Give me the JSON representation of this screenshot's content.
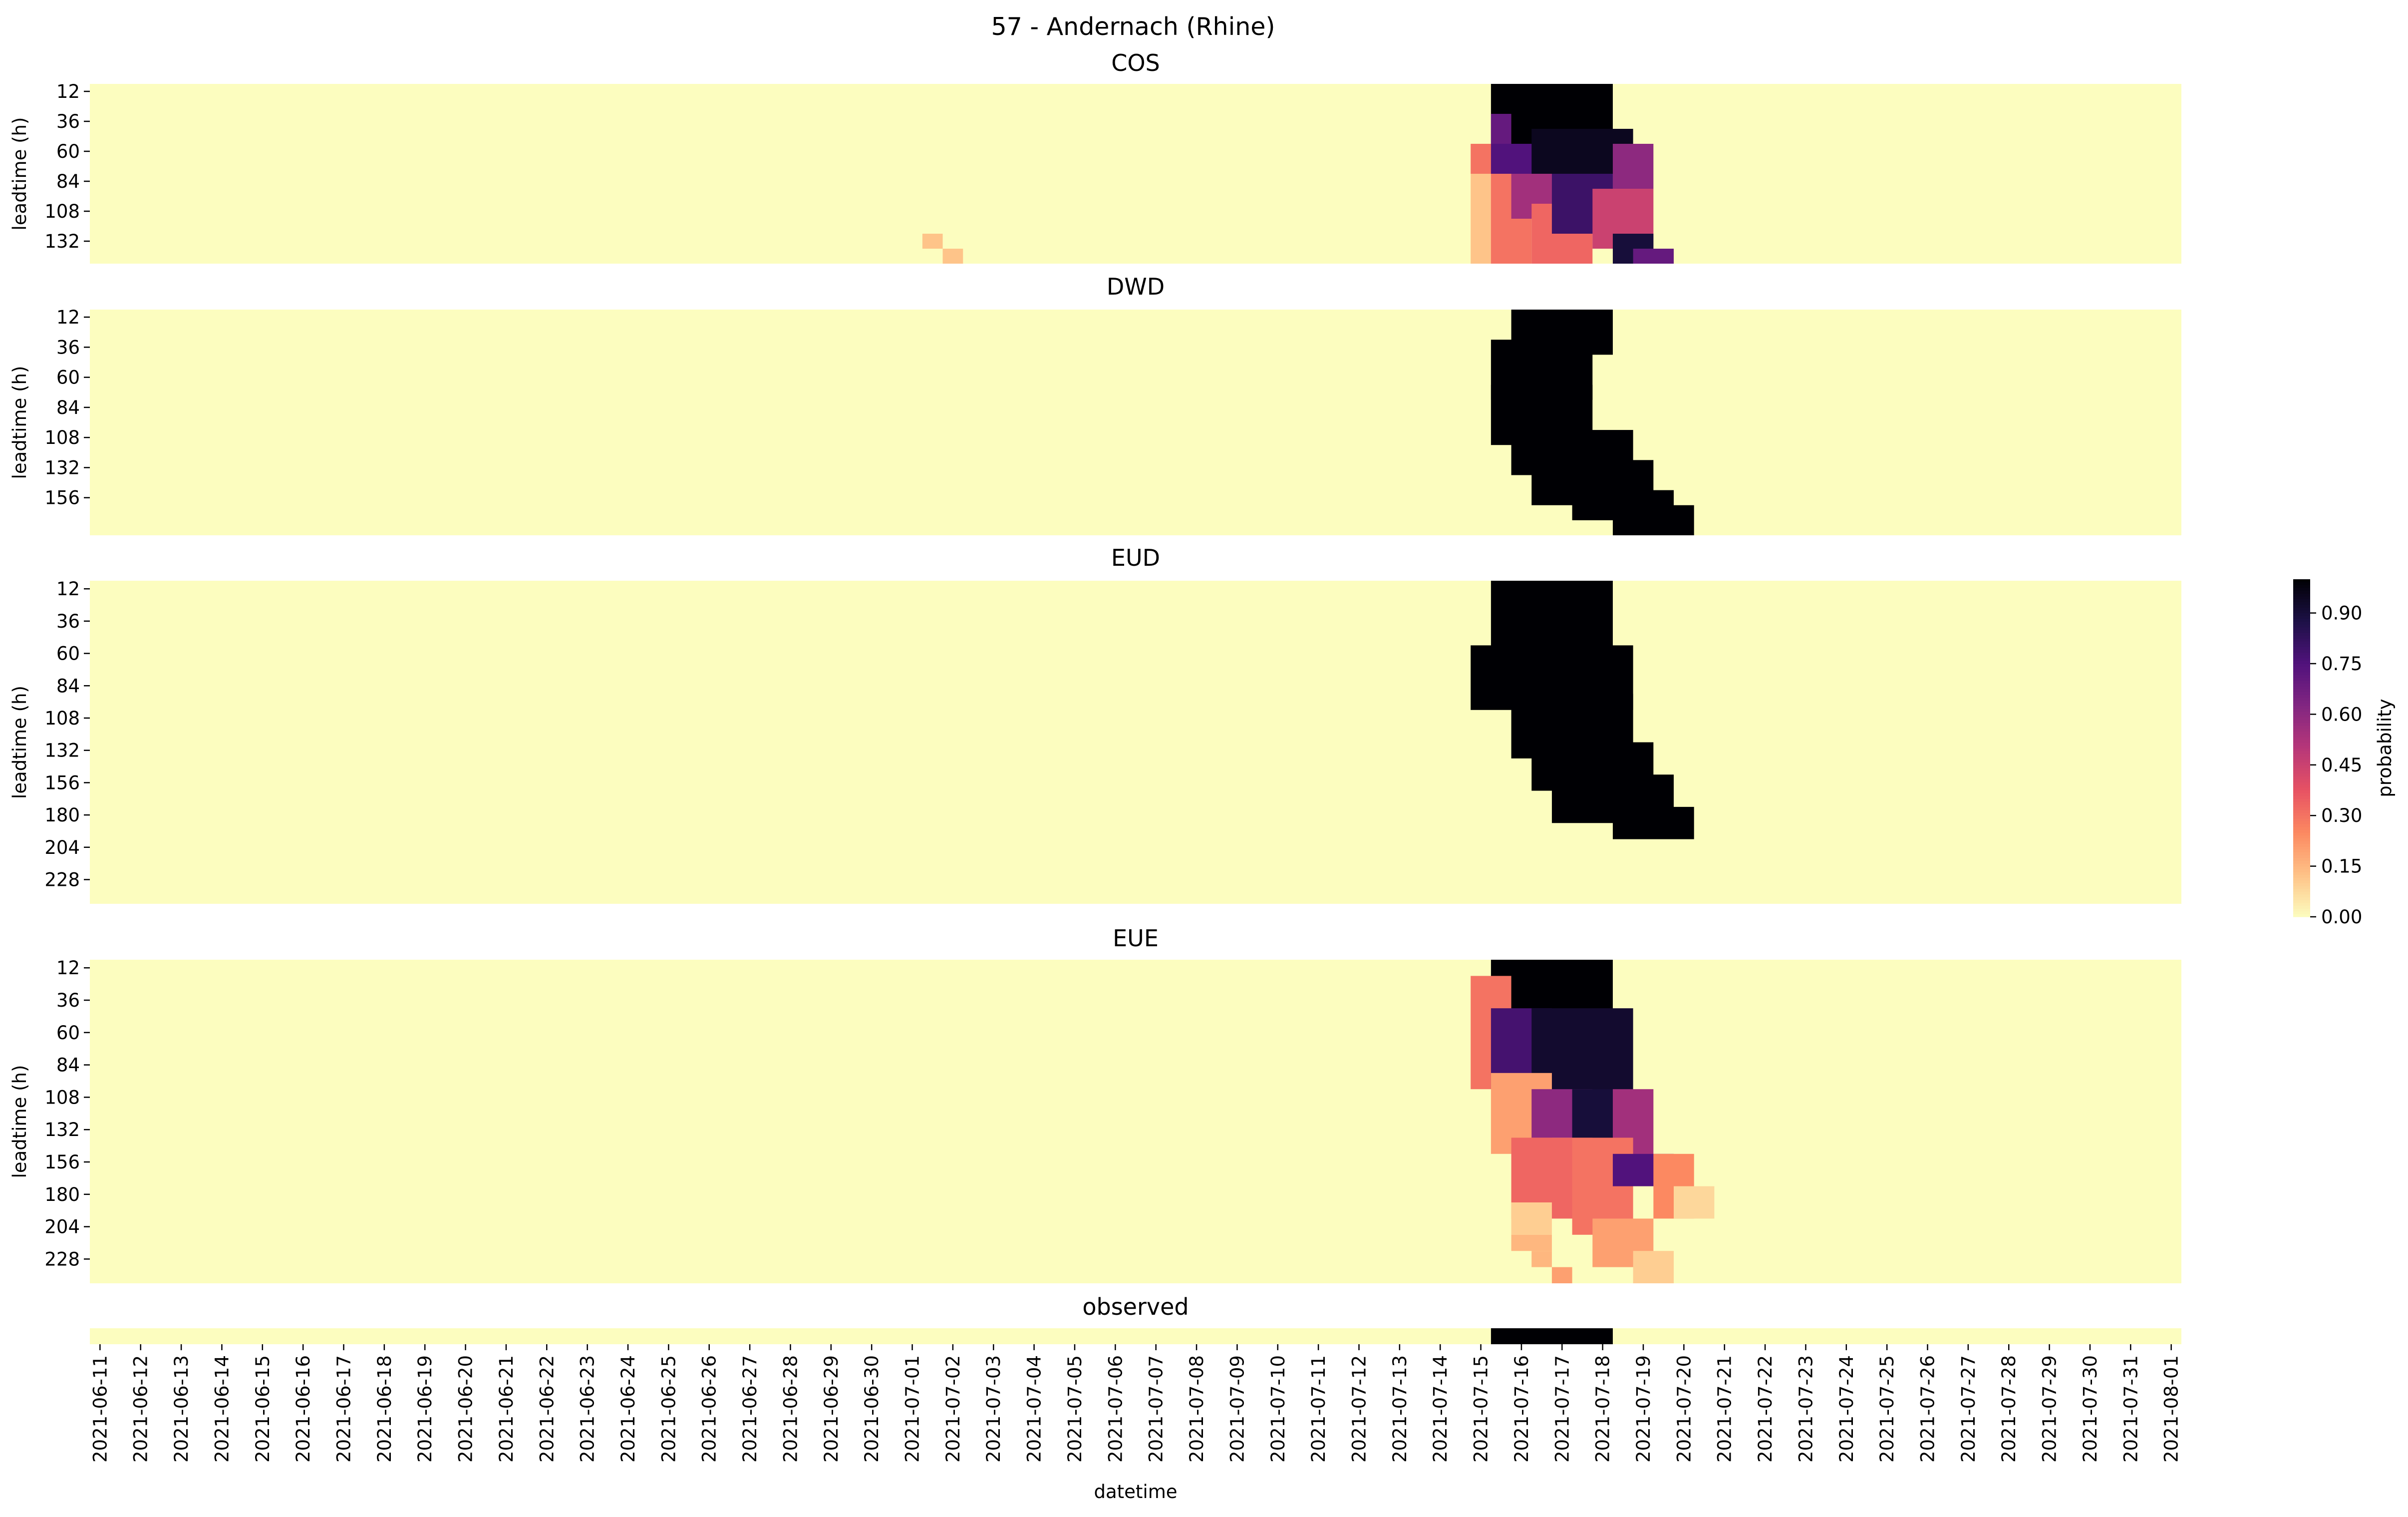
{
  "figure": {
    "title": "57 - Andernach (Rhine)"
  },
  "colors": {
    "low": "#fcfdbf",
    "high": "#000004",
    "stops": [
      "#fcfdbf",
      "#fec287",
      "#fc8961",
      "#e75263",
      "#b73779",
      "#822681",
      "#51127c",
      "#1d1147",
      "#000004"
    ]
  },
  "colorbar": {
    "label": "probability",
    "ticks": [
      "0.00",
      "0.15",
      "0.30",
      "0.45",
      "0.60",
      "0.75",
      "0.90"
    ],
    "tick_values": [
      0.0,
      0.15,
      0.3,
      0.45,
      0.6,
      0.75,
      0.9
    ],
    "range": [
      0,
      1
    ]
  },
  "chart_data": {
    "type": "heatmap",
    "xlabel": "datetime",
    "x_ticks": [
      "2021-06-11",
      "2021-06-12",
      "2021-06-13",
      "2021-06-14",
      "2021-06-15",
      "2021-06-16",
      "2021-06-17",
      "2021-06-18",
      "2021-06-19",
      "2021-06-20",
      "2021-06-21",
      "2021-06-22",
      "2021-06-23",
      "2021-06-24",
      "2021-06-25",
      "2021-06-26",
      "2021-06-27",
      "2021-06-28",
      "2021-06-29",
      "2021-06-30",
      "2021-07-01",
      "2021-07-02",
      "2021-07-03",
      "2021-07-04",
      "2021-07-05",
      "2021-07-06",
      "2021-07-07",
      "2021-07-08",
      "2021-07-09",
      "2021-07-10",
      "2021-07-11",
      "2021-07-12",
      "2021-07-13",
      "2021-07-14",
      "2021-07-15",
      "2021-07-16",
      "2021-07-17",
      "2021-07-18",
      "2021-07-19",
      "2021-07-20",
      "2021-07-21",
      "2021-07-22",
      "2021-07-23",
      "2021-07-24",
      "2021-07-25",
      "2021-07-26",
      "2021-07-27",
      "2021-07-28",
      "2021-07-29",
      "2021-07-30",
      "2021-07-31",
      "2021-08-01"
    ],
    "x_start": "2021-06-11",
    "x_end": "2021-08-01",
    "x_step_hours": 12,
    "leadtime_step_hours": 12,
    "panels": [
      {
        "name": "COS",
        "ylabel": "leadtime (h)",
        "y_ticks": [
          "12",
          "36",
          "60",
          "84",
          "108",
          "132"
        ],
        "leadtimes": [
          12,
          24,
          36,
          48,
          60,
          72,
          84,
          96,
          108,
          120,
          132,
          144
        ],
        "regions": [
          {
            "from": "2021-07-15T12",
            "to": "2021-07-18T00",
            "lead_from": 12,
            "lead_to": 48,
            "value": 1.0
          },
          {
            "from": "2021-07-15T12",
            "to": "2021-07-15T12",
            "lead_from": 36,
            "lead_to": 48,
            "value": 0.7
          },
          {
            "from": "2021-07-15T00",
            "to": "2021-07-15T12",
            "lead_from": 60,
            "lead_to": 72,
            "value": 0.3
          },
          {
            "from": "2021-07-15T12",
            "to": "2021-07-16T12",
            "lead_from": 60,
            "lead_to": 84,
            "value": 0.75
          },
          {
            "from": "2021-07-16T12",
            "to": "2021-07-18T12",
            "lead_from": 48,
            "lead_to": 72,
            "value": 0.95
          },
          {
            "from": "2021-07-18T12",
            "to": "2021-07-19T00",
            "lead_from": 60,
            "lead_to": 84,
            "value": 0.6
          },
          {
            "from": "2021-07-15T00",
            "to": "2021-07-15T12",
            "lead_from": 84,
            "lead_to": 144,
            "value": 0.12
          },
          {
            "from": "2021-07-15T12",
            "to": "2021-07-16T00",
            "lead_from": 84,
            "lead_to": 144,
            "value": 0.3
          },
          {
            "from": "2021-07-16T00",
            "to": "2021-07-17T00",
            "lead_from": 84,
            "lead_to": 108,
            "value": 0.55
          },
          {
            "from": "2021-07-16T12",
            "to": "2021-07-17T12",
            "lead_from": 108,
            "lead_to": 144,
            "value": 0.33
          },
          {
            "from": "2021-07-17T00",
            "to": "2021-07-18T00",
            "lead_from": 84,
            "lead_to": 120,
            "value": 0.8
          },
          {
            "from": "2021-07-18T00",
            "to": "2021-07-19T00",
            "lead_from": 96,
            "lead_to": 132,
            "value": 0.45
          },
          {
            "from": "2021-07-18T12",
            "to": "2021-07-19T00",
            "lead_from": 132,
            "lead_to": 144,
            "value": 0.9
          },
          {
            "from": "2021-07-19T00",
            "to": "2021-07-19T12",
            "lead_from": 144,
            "lead_to": 144,
            "value": 0.7
          },
          {
            "from": "2021-07-01T12",
            "to": "2021-07-01T12",
            "lead_from": 132,
            "lead_to": 132,
            "value": 0.12
          },
          {
            "from": "2021-07-02T00",
            "to": "2021-07-02T00",
            "lead_from": 144,
            "lead_to": 144,
            "value": 0.12
          }
        ]
      },
      {
        "name": "DWD",
        "ylabel": "leadtime (h)",
        "y_ticks": [
          "12",
          "36",
          "60",
          "84",
          "108",
          "132",
          "156"
        ],
        "leadtimes": [
          12,
          24,
          36,
          48,
          60,
          72,
          84,
          96,
          108,
          120,
          132,
          144,
          156,
          168,
          180
        ],
        "regions": [
          {
            "from": "2021-07-16T00",
            "to": "2021-07-18T00",
            "lead_from": 12,
            "lead_to": 36,
            "value": 1.0
          },
          {
            "from": "2021-07-15T12",
            "to": "2021-07-17T12",
            "lead_from": 36,
            "lead_to": 72,
            "value": 1.0
          },
          {
            "from": "2021-07-15T12",
            "to": "2021-07-17T12",
            "lead_from": 72,
            "lead_to": 108,
            "value": 1.0
          },
          {
            "from": "2021-07-16T00",
            "to": "2021-07-18T12",
            "lead_from": 108,
            "lead_to": 132,
            "value": 1.0
          },
          {
            "from": "2021-07-16T12",
            "to": "2021-07-19T00",
            "lead_from": 132,
            "lead_to": 156,
            "value": 1.0
          },
          {
            "from": "2021-07-17T12",
            "to": "2021-07-19T12",
            "lead_from": 156,
            "lead_to": 168,
            "value": 1.0
          },
          {
            "from": "2021-07-18T12",
            "to": "2021-07-20T00",
            "lead_from": 168,
            "lead_to": 180,
            "value": 1.0
          }
        ]
      },
      {
        "name": "EUD",
        "ylabel": "leadtime (h)",
        "y_ticks": [
          "12",
          "36",
          "60",
          "84",
          "108",
          "132",
          "156",
          "180",
          "204",
          "228"
        ],
        "leadtimes": [
          12,
          24,
          36,
          48,
          60,
          72,
          84,
          96,
          108,
          120,
          132,
          144,
          156,
          168,
          180,
          192,
          204,
          216,
          228,
          240
        ],
        "regions": [
          {
            "from": "2021-07-15T12",
            "to": "2021-07-18T00",
            "lead_from": 12,
            "lead_to": 60,
            "value": 1.0
          },
          {
            "from": "2021-07-15T00",
            "to": "2021-07-18T12",
            "lead_from": 60,
            "lead_to": 96,
            "value": 1.0
          },
          {
            "from": "2021-07-16T00",
            "to": "2021-07-18T12",
            "lead_from": 96,
            "lead_to": 132,
            "value": 1.0
          },
          {
            "from": "2021-07-16T12",
            "to": "2021-07-19T00",
            "lead_from": 132,
            "lead_to": 156,
            "value": 1.0
          },
          {
            "from": "2021-07-17T00",
            "to": "2021-07-19T12",
            "lead_from": 156,
            "lead_to": 180,
            "value": 1.0
          },
          {
            "from": "2021-07-18T12",
            "to": "2021-07-20T00",
            "lead_from": 180,
            "lead_to": 192,
            "value": 1.0
          }
        ]
      },
      {
        "name": "EUE",
        "ylabel": "leadtime (h)",
        "y_ticks": [
          "12",
          "36",
          "60",
          "84",
          "108",
          "132",
          "156",
          "180",
          "204",
          "228"
        ],
        "leadtimes": [
          12,
          24,
          36,
          48,
          60,
          72,
          84,
          96,
          108,
          120,
          132,
          144,
          156,
          168,
          180,
          192,
          204,
          216,
          228,
          240
        ],
        "regions": [
          {
            "from": "2021-07-15T12",
            "to": "2021-07-18T00",
            "lead_from": 12,
            "lead_to": 48,
            "value": 1.0
          },
          {
            "from": "2021-07-15T00",
            "to": "2021-07-15T12",
            "lead_from": 24,
            "lead_to": 96,
            "value": 0.3
          },
          {
            "from": "2021-07-15T12",
            "to": "2021-07-16T12",
            "lead_from": 48,
            "lead_to": 96,
            "value": 0.78
          },
          {
            "from": "2021-07-16T12",
            "to": "2021-07-18T12",
            "lead_from": 48,
            "lead_to": 108,
            "value": 0.92
          },
          {
            "from": "2021-07-15T12",
            "to": "2021-07-16T12",
            "lead_from": 96,
            "lead_to": 144,
            "value": 0.2
          },
          {
            "from": "2021-07-16T12",
            "to": "2021-07-17T12",
            "lead_from": 108,
            "lead_to": 132,
            "value": 0.6
          },
          {
            "from": "2021-07-17T12",
            "to": "2021-07-18T12",
            "lead_from": 108,
            "lead_to": 144,
            "value": 0.9
          },
          {
            "from": "2021-07-18T12",
            "to": "2021-07-19T00",
            "lead_from": 108,
            "lead_to": 156,
            "value": 0.55
          },
          {
            "from": "2021-07-16T00",
            "to": "2021-07-17T12",
            "lead_from": 144,
            "lead_to": 192,
            "value": 0.33
          },
          {
            "from": "2021-07-17T12",
            "to": "2021-07-18T12",
            "lead_from": 144,
            "lead_to": 204,
            "value": 0.3
          },
          {
            "from": "2021-07-18T12",
            "to": "2021-07-19T12",
            "lead_from": 156,
            "lead_to": 168,
            "value": 0.75
          },
          {
            "from": "2021-07-19T12",
            "to": "2021-07-20T00",
            "lead_from": 156,
            "lead_to": 192,
            "value": 0.25
          },
          {
            "from": "2021-07-20T00",
            "to": "2021-07-20T12",
            "lead_from": 180,
            "lead_to": 192,
            "value": 0.08
          },
          {
            "from": "2021-07-16T00",
            "to": "2021-07-16T12",
            "lead_from": 192,
            "lead_to": 204,
            "value": 0.1
          },
          {
            "from": "2021-07-18T00",
            "to": "2021-07-19T00",
            "lead_from": 204,
            "lead_to": 228,
            "value": 0.2
          },
          {
            "from": "2021-07-16T00",
            "to": "2021-07-16T12",
            "lead_from": 216,
            "lead_to": 216,
            "value": 0.15
          },
          {
            "from": "2021-07-16T12",
            "to": "2021-07-16T12",
            "lead_from": 228,
            "lead_to": 228,
            "value": 0.15
          },
          {
            "from": "2021-07-17T00",
            "to": "2021-07-17T00",
            "lead_from": 240,
            "lead_to": 240,
            "value": 0.2
          },
          {
            "from": "2021-07-19T00",
            "to": "2021-07-19T12",
            "lead_from": 228,
            "lead_to": 240,
            "value": 0.1
          }
        ]
      },
      {
        "name": "observed",
        "ylabel": "",
        "y_ticks": [],
        "leadtimes": [
          0
        ],
        "regions": [
          {
            "from": "2021-07-15T12",
            "to": "2021-07-18T00",
            "lead_from": 0,
            "lead_to": 0,
            "value": 1.0
          }
        ]
      }
    ]
  }
}
